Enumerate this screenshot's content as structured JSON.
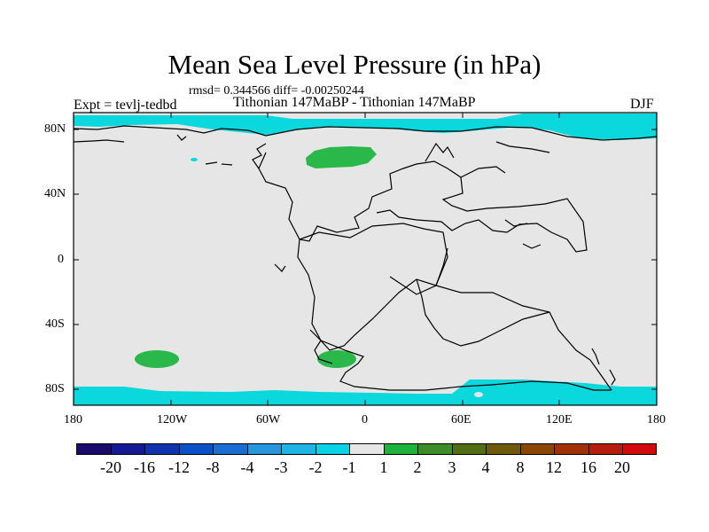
{
  "title": "Mean Sea Level Pressure (in hPa)",
  "stats": "rmsd= 0.344566 diff= -0.00250244",
  "experiment": "Expt = tevlj-tedbd",
  "subtitle": "Tithonian 147MaBP - Tithonian 147MaBP",
  "season": "DJF",
  "map": {
    "projection": "cylindrical-equidistant",
    "lon_range": [
      -180,
      180
    ],
    "lat_range": [
      -90,
      90
    ],
    "background_color": "#e6e6e6",
    "x_ticks": [
      "180",
      "120W",
      "60W",
      "0",
      "60E",
      "120E",
      "180"
    ],
    "y_ticks": [
      "80N",
      "40N",
      "0",
      "40S",
      "80S"
    ]
  },
  "colorbar": {
    "colors": [
      "#1a0a6b",
      "#141a96",
      "#0f32ad",
      "#0a50c8",
      "#1a6ed2",
      "#2896dc",
      "#1eb4e6",
      "#0ad2e6",
      "#e6e6e6",
      "#1eb43c",
      "#3c8c28",
      "#506e14",
      "#6e5a0a",
      "#8c4600",
      "#a03205",
      "#b41e0a",
      "#d20a0a"
    ],
    "labels": [
      "-20",
      "-16",
      "-12",
      "-8",
      "-4",
      "-3",
      "-2",
      "-1",
      "1",
      "2",
      "3",
      "4",
      "8",
      "12",
      "16",
      "20"
    ]
  },
  "legend_colors": {
    "cyan": "#0ad8dc",
    "green": "#2ab84a"
  }
}
